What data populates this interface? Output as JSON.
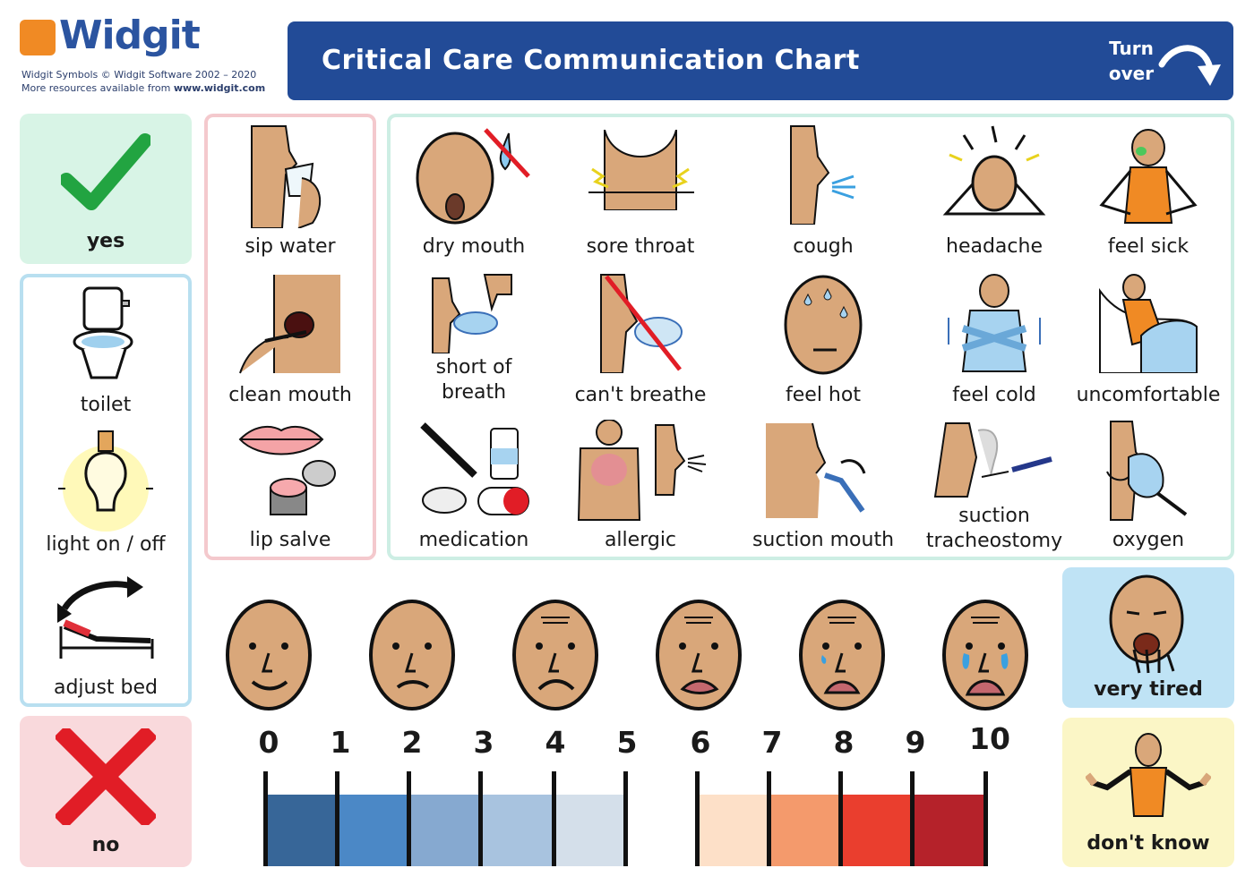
{
  "brand": {
    "name": "Widgit",
    "copyright": "Widgit Symbols © Widgit Software 2002 – 2020",
    "more_prefix": "More resources available from ",
    "more_url": "www.widgit.com"
  },
  "banner": {
    "title": "Critical Care Communication Chart",
    "turn_line1": "Turn",
    "turn_line2": "over"
  },
  "colors": {
    "banner": "#224b97",
    "yes_bg": "#d8f4e6",
    "no_bg": "#f9d9dc",
    "blue_border": "#b8dff0",
    "pink_border": "#f4c9cd",
    "green_border": "#cdeee4",
    "tired_bg": "#bfe3f5",
    "dontknow_bg": "#fbf6c6",
    "skin": "#d9a77a"
  },
  "left": {
    "yes": "yes",
    "toilet": "toilet",
    "light": "light on / off",
    "bed": "adjust bed",
    "no": "no"
  },
  "mouth": {
    "sip": "sip water",
    "clean": "clean mouth",
    "lip": "lip salve"
  },
  "symptoms": {
    "row1": [
      "dry mouth",
      "sore throat",
      "cough",
      "headache",
      "feel sick"
    ],
    "row2a": "short of",
    "row2b": "breath",
    "row2": [
      "can't breathe",
      "feel hot",
      "feel cold",
      "uncomfortable"
    ],
    "row3": [
      "medication",
      "allergic",
      "suction mouth"
    ],
    "trach_a": "suction",
    "trach_b": "tracheostomy",
    "oxygen": "oxygen"
  },
  "right": {
    "tired": "very tired",
    "dontknow": "don't know"
  },
  "pain_scale": {
    "numbers": [
      "0",
      "1",
      "2",
      "3",
      "4",
      "5",
      "6",
      "7",
      "8",
      "9",
      "10"
    ],
    "cool_colors": [
      "#376698",
      "#4b88c6",
      "#86a9d0",
      "#a8c3df",
      "#d4dfea"
    ],
    "warm_colors": [
      "#fde0c8",
      "#f49a6c",
      "#ea3e2e",
      "#b5222a"
    ]
  }
}
